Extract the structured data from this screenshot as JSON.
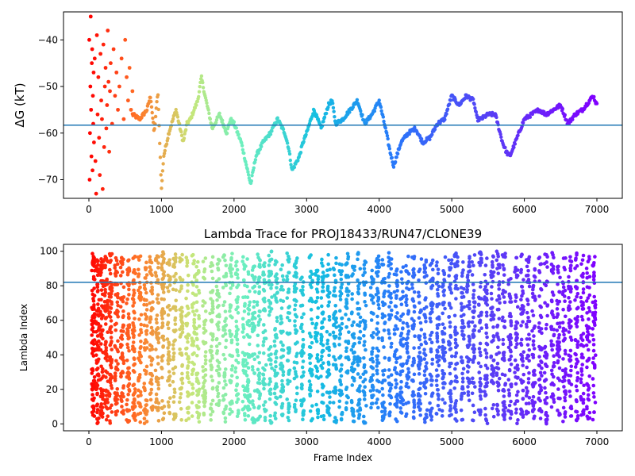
{
  "chart_data": [
    {
      "type": "scatter",
      "title": "",
      "xlabel": "",
      "ylabel": "ΔG (kT)",
      "xlim": [
        -350,
        7350
      ],
      "ylim": [
        -74,
        -34
      ],
      "x_ticks": [
        0,
        1000,
        2000,
        3000,
        4000,
        5000,
        6000,
        7000
      ],
      "y_ticks": [
        -70,
        -60,
        -50,
        -40
      ],
      "grid": false,
      "colormap": "rainbow (reversed: red at frame 0 → violet at frame 7000)",
      "reference_line": {
        "y": -58.3,
        "color": "#1f77b4"
      },
      "trace": {
        "x": [
          0,
          30,
          60,
          100,
          150,
          200,
          250,
          300,
          400,
          500,
          600,
          700,
          800,
          850,
          900,
          950,
          1000,
          1030,
          1100,
          1200,
          1300,
          1350,
          1400,
          1500,
          1550,
          1600,
          1700,
          1800,
          1900,
          1950,
          2000,
          2100,
          2200,
          2230,
          2300,
          2400,
          2500,
          2600,
          2700,
          2750,
          2800,
          2900,
          2950,
          3000,
          3100,
          3200,
          3300,
          3350,
          3400,
          3500,
          3600,
          3700,
          3800,
          3900,
          4000,
          4100,
          4150,
          4200,
          4300,
          4400,
          4500,
          4600,
          4700,
          4800,
          4900,
          5000,
          5100,
          5200,
          5300,
          5350,
          5400,
          5500,
          5600,
          5700,
          5750,
          5800,
          5900,
          6000,
          6100,
          6200,
          6300,
          6400,
          6500,
          6600,
          6700,
          6800,
          6900,
          6950,
          7000
        ],
        "y": [
          -50,
          -40,
          -60,
          -45,
          -55,
          -62,
          -48,
          -53,
          -50,
          -44,
          -56,
          -57,
          -55,
          -52,
          -60,
          -51,
          -72,
          -65,
          -60,
          -55,
          -62,
          -58,
          -57,
          -53,
          -48,
          -52,
          -59,
          -56,
          -60,
          -57,
          -58,
          -62,
          -69,
          -71,
          -65,
          -62,
          -60,
          -57,
          -60,
          -63,
          -68,
          -65,
          -62,
          -60,
          -55,
          -59,
          -54,
          -53,
          -58,
          -57,
          -55,
          -53,
          -58,
          -56,
          -53,
          -60,
          -64,
          -67,
          -62,
          -60,
          -59,
          -62,
          -61,
          -58,
          -57,
          -52,
          -54,
          -52,
          -53,
          -57,
          -57,
          -56,
          -56,
          -62,
          -64,
          -65,
          -61,
          -57,
          -56,
          -55,
          -56,
          -55,
          -54,
          -58,
          -56,
          -55,
          -53,
          -52,
          -54
        ]
      },
      "early_scatter": {
        "x": [
          5,
          10,
          15,
          20,
          25,
          30,
          35,
          40,
          45,
          50,
          55,
          60,
          65,
          70,
          80,
          90,
          100,
          110,
          120,
          130,
          140,
          150,
          160,
          170,
          180,
          190,
          200,
          210,
          220,
          230,
          240,
          250,
          260,
          270,
          280,
          290,
          300,
          320,
          340,
          360,
          380,
          400,
          420,
          450,
          480,
          500,
          520,
          540,
          560,
          580,
          600
        ],
        "y": [
          -40,
          -70,
          -60,
          -50,
          -35,
          -55,
          -65,
          -45,
          -42,
          -68,
          -52,
          -58,
          -47,
          -62,
          -44,
          -66,
          -73,
          -39,
          -56,
          -48,
          -61,
          -69,
          -43,
          -53,
          -57,
          -72,
          -41,
          -63,
          -50,
          -46,
          -59,
          -54,
          -38,
          -49,
          -64,
          -51,
          -45,
          -58,
          -42,
          -52,
          -47,
          -55,
          -50,
          -44,
          -57,
          -40,
          -48,
          -53,
          -46,
          -55,
          -51
        ]
      }
    },
    {
      "type": "scatter",
      "title": "Lambda Trace for PROJ18433/RUN47/CLONE39",
      "xlabel": "Frame Index",
      "ylabel": "Lambda Index",
      "xlim": [
        -350,
        7350
      ],
      "ylim": [
        -4,
        104
      ],
      "x_ticks": [
        0,
        1000,
        2000,
        3000,
        4000,
        5000,
        6000,
        7000
      ],
      "y_ticks": [
        0,
        20,
        40,
        60,
        80,
        100
      ],
      "grid": false,
      "colormap": "rainbow (reversed: red at frame 0 → violet at frame 7000)",
      "reference_line": {
        "y": 82,
        "color": "#1f77b4"
      },
      "bands": {
        "centers": [
          60,
          120,
          180,
          240,
          300,
          380,
          460,
          540,
          620,
          700,
          780,
          860,
          940,
          1020,
          1100,
          1180,
          1270,
          1360,
          1440,
          1500,
          1590,
          1690,
          1780,
          1870,
          1960,
          2040,
          2140,
          2200,
          2270,
          2340,
          2420,
          2500,
          2580,
          2660,
          2750,
          2850,
          2940,
          3060,
          3140,
          3220,
          3300,
          3390,
          3470,
          3560,
          3640,
          3720,
          3800,
          3900,
          3980,
          4060,
          4150,
          4230,
          4310,
          4390,
          4470,
          4560,
          4640,
          4720,
          4810,
          4890,
          4980,
          5060,
          5150,
          5230,
          5300,
          5390,
          5470,
          5560,
          5640,
          5720,
          5800,
          5890,
          5970,
          6050,
          6130,
          6220,
          6300,
          6390,
          6470,
          6550,
          6630,
          6720,
          6800,
          6880,
          6960
        ],
        "min": [
          3,
          0,
          2,
          1,
          0,
          1,
          3,
          0,
          2,
          1,
          0,
          2,
          1,
          0,
          3,
          2,
          1,
          0,
          2,
          1,
          0,
          2,
          3,
          1,
          0,
          2,
          1,
          3,
          0,
          2,
          1,
          0,
          3,
          2,
          1,
          5,
          2,
          0,
          3,
          1,
          4,
          0,
          2,
          5,
          1,
          3,
          0,
          2,
          6,
          1,
          4,
          0,
          2,
          3,
          1,
          5,
          0,
          2,
          4,
          1,
          3,
          0,
          2,
          5,
          1,
          3,
          0,
          4,
          2,
          1,
          3,
          0,
          2,
          5,
          1,
          3,
          0,
          2,
          4,
          1,
          3,
          0,
          5,
          2,
          1
        ],
        "max": [
          99,
          98,
          99,
          97,
          99,
          98,
          99,
          97,
          98,
          99,
          95,
          98,
          99,
          100,
          97,
          99,
          98,
          99,
          100,
          96,
          99,
          97,
          99,
          98,
          99,
          96,
          99,
          98,
          92,
          99,
          97,
          100,
          99,
          95,
          99,
          100,
          88,
          99,
          92,
          97,
          99,
          100,
          94,
          99,
          93,
          100,
          99,
          91,
          98,
          99,
          100,
          95,
          92,
          99,
          98,
          97,
          100,
          99,
          94,
          98,
          99,
          100,
          96,
          99,
          98,
          100,
          97,
          99,
          100,
          99,
          96,
          98,
          99,
          97,
          92,
          98,
          99,
          100,
          94,
          99,
          97,
          100,
          98,
          99,
          100
        ],
        "density": [
          14,
          12,
          12,
          11,
          11,
          10,
          10,
          10,
          10,
          9,
          9,
          9,
          9,
          9,
          8,
          8,
          8,
          8,
          8,
          8,
          8,
          8,
          8,
          8,
          8,
          8,
          8,
          8,
          8,
          8,
          8,
          8,
          8,
          8,
          8,
          8,
          8,
          8,
          8,
          8,
          8,
          8,
          8,
          8,
          8,
          8,
          8,
          8,
          8,
          8,
          8,
          8,
          8,
          8,
          8,
          8,
          8,
          8,
          8,
          8,
          8,
          8,
          8,
          8,
          8,
          8,
          8,
          8,
          8,
          8,
          8,
          8,
          8,
          8,
          8,
          8,
          8,
          8,
          8,
          8,
          8,
          8,
          8,
          8,
          8
        ]
      }
    }
  ]
}
